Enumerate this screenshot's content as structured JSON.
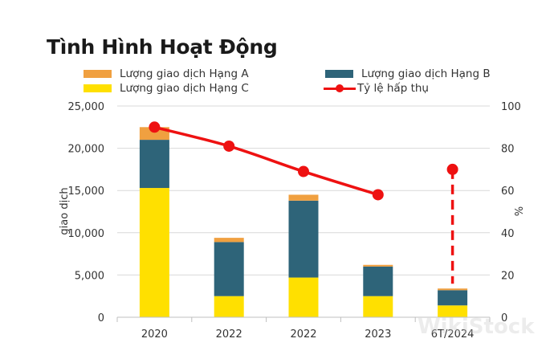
{
  "chart_data": {
    "type": "bar",
    "title": "Tình Hình Hoạt Động",
    "categories": [
      "2020",
      "2022",
      "2022",
      "2023",
      "6T/2024"
    ],
    "stacked": true,
    "series": [
      {
        "name": "Lượng giao dịch Hạng C",
        "color": "#FFE000",
        "values": [
          15300,
          2500,
          4700,
          2500,
          1400
        ]
      },
      {
        "name": "Lượng giao dịch Hạng B",
        "color": "#2E6479",
        "values": [
          5700,
          6400,
          9100,
          3500,
          1800
        ]
      },
      {
        "name": "Lượng giao dịch Hạng A",
        "color": "#F0A040",
        "values": [
          1500,
          500,
          700,
          200,
          200
        ]
      }
    ],
    "line_series": {
      "name": "Tỷ lệ hấp thụ",
      "color": "#EE1111",
      "axis": "right",
      "values": [
        90,
        81,
        69,
        58,
        70
      ],
      "dashed_last_point": true
    },
    "ylabel": "giao dịch",
    "ylabel_right": "%",
    "ylim": [
      0,
      25000
    ],
    "ylim_right": [
      0,
      100
    ],
    "yticks": [
      "0",
      "5,000",
      "10,000",
      "15,000",
      "20,000",
      "25,000"
    ],
    "yticks_right": [
      "0",
      "20",
      "40",
      "60",
      "80",
      "100"
    ],
    "grid": true,
    "legend_position": "top"
  },
  "legend": [
    {
      "label": "Lượng giao dịch Hạng A",
      "color": "#F0A040"
    },
    {
      "label": "Lượng giao dịch Hạng B",
      "color": "#2E6479"
    },
    {
      "label": "Lượng giao dịch Hạng C",
      "color": "#FFE000"
    },
    {
      "label": "Tỷ lệ hấp thụ",
      "color": "#EE1111"
    }
  ],
  "watermark": "WikiStock"
}
